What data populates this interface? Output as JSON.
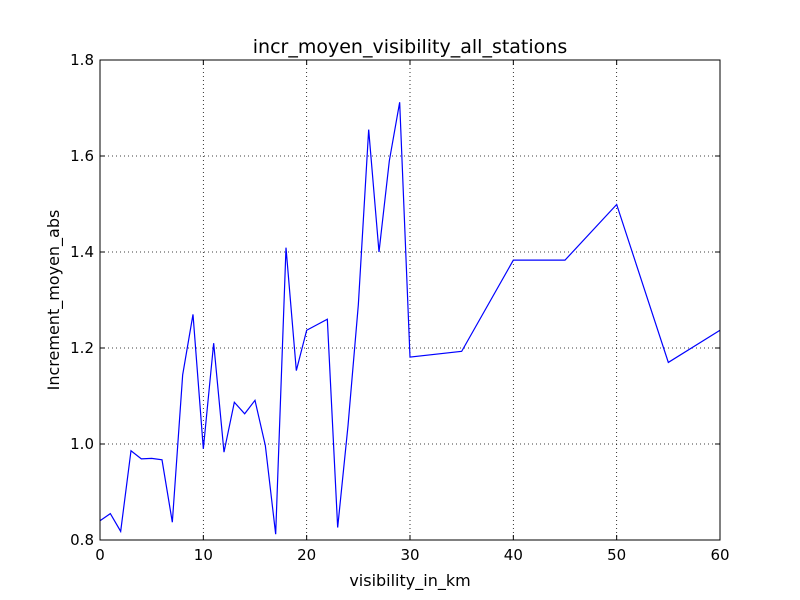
{
  "chart_data": {
    "type": "line",
    "title": "incr_moyen_visibility_all_stations",
    "xlabel": "visibility_in_km",
    "ylabel": "Increment_moyen_abs",
    "xlim": [
      0,
      60
    ],
    "ylim": [
      0.8,
      1.8
    ],
    "x_ticks": [
      0,
      10,
      20,
      30,
      40,
      50,
      60
    ],
    "y_ticks": [
      0.8,
      1.0,
      1.2,
      1.4,
      1.6,
      1.8
    ],
    "x_tick_labels": [
      "0",
      "10",
      "20",
      "30",
      "40",
      "50",
      "60"
    ],
    "y_tick_labels": [
      "0.8",
      "1.0",
      "1.2",
      "1.4",
      "1.6",
      "1.8"
    ],
    "grid": true,
    "color": "#0000ff",
    "series": [
      {
        "x": [
          0,
          1,
          2,
          3,
          4,
          5,
          6,
          7,
          8,
          9,
          10,
          11,
          12,
          13,
          14,
          15,
          16,
          17,
          18,
          19,
          20,
          22,
          23,
          24,
          25,
          26,
          27,
          28,
          29,
          30,
          35,
          40,
          45,
          50,
          55,
          60
        ],
        "values": [
          0.84,
          0.855,
          0.818,
          0.986,
          0.969,
          0.97,
          0.967,
          0.837,
          1.144,
          1.27,
          0.99,
          1.21,
          0.983,
          1.087,
          1.063,
          1.091,
          0.997,
          0.812,
          1.409,
          1.153,
          1.237,
          1.26,
          0.826,
          1.038,
          1.29,
          1.655,
          1.4,
          1.59,
          1.712,
          1.181,
          1.193,
          1.383,
          1.383,
          1.499,
          1.17,
          1.237
        ]
      }
    ]
  }
}
